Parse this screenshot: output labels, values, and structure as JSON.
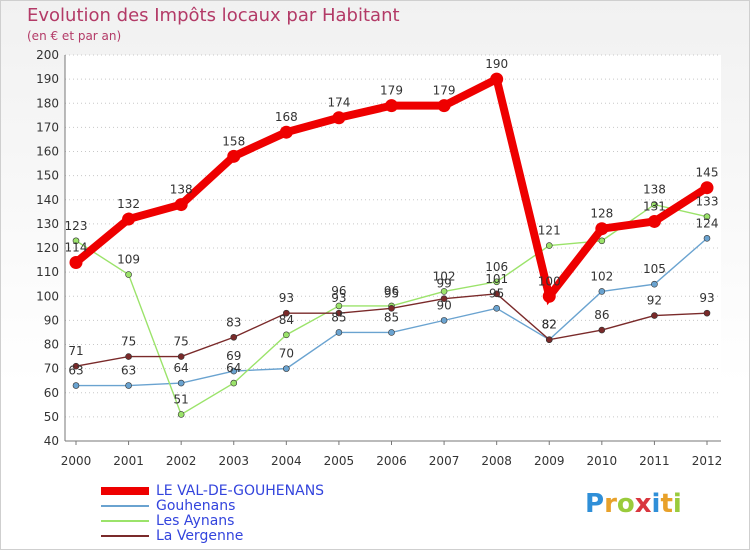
{
  "header": {
    "title": "Evolution des Impôts locaux par Habitant",
    "subtitle": "(en € et par an)"
  },
  "logo": {
    "text": "Proxiti",
    "colors": [
      "#2f8fd8",
      "#e8a12a",
      "#9acb3c",
      "#d9363e",
      "#2f8fd8",
      "#e8a12a",
      "#9acb3c"
    ]
  },
  "chart_data": {
    "type": "line",
    "title": "Evolution des Impôts locaux par Habitant",
    "subtitle": "(en € et par an)",
    "xlabel": "",
    "ylabel": "",
    "ylim": [
      40,
      200
    ],
    "yticks": [
      40,
      50,
      60,
      70,
      80,
      90,
      100,
      110,
      120,
      130,
      140,
      150,
      160,
      170,
      180,
      190,
      200
    ],
    "grid": "horizontal-dotted",
    "legend_placement": "bottom-left",
    "x": [
      "2000",
      "2001",
      "2002",
      "2003",
      "2004",
      "2005",
      "2006",
      "2007",
      "2008",
      "2009",
      "2010",
      "2011",
      "2012"
    ],
    "series": [
      {
        "name": "LE VAL-DE-GOUHENANS",
        "color": "#ee0000",
        "style": "thick",
        "values": [
          114,
          132,
          138,
          158,
          168,
          174,
          179,
          179,
          190,
          100,
          128,
          131,
          145
        ],
        "labels": [
          "114",
          "132",
          "138",
          "158",
          "168",
          "174",
          "179",
          "179",
          "190",
          "100",
          "128",
          "131",
          "145"
        ]
      },
      {
        "name": "Gouhenans",
        "color": "#6aa3d0",
        "style": "thin",
        "values": [
          63,
          63,
          64,
          69,
          70,
          85,
          85,
          90,
          95,
          82,
          102,
          105,
          124
        ],
        "labels": [
          "63",
          "63",
          "64",
          "69",
          "70",
          "85",
          "85",
          "90",
          "95",
          "82",
          "102",
          "105",
          "124"
        ]
      },
      {
        "name": "Les Aynans",
        "color": "#9be36a",
        "style": "thin",
        "values": [
          123,
          109,
          51,
          64,
          84,
          96,
          96,
          102,
          106,
          121,
          123,
          138,
          133
        ],
        "labels": [
          "123",
          "109",
          "51",
          "64",
          "84",
          "96",
          "96",
          "102",
          "106",
          "121",
          "",
          "138",
          "133"
        ]
      },
      {
        "name": "La Vergenne",
        "color": "#7a2a2a",
        "style": "thin",
        "values": [
          71,
          75,
          75,
          83,
          93,
          93,
          95,
          99,
          101,
          82,
          86,
          92,
          93
        ],
        "labels": [
          "71",
          "75",
          "75",
          "83",
          "93",
          "93",
          "95",
          "99",
          "101",
          "82",
          "86",
          "92",
          "93"
        ]
      }
    ]
  }
}
